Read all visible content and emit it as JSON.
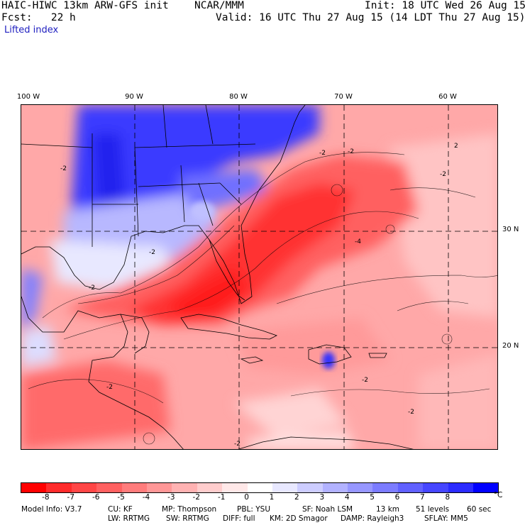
{
  "header": {
    "model_title": "HAIC-HIWC 13km ARW-GFS init",
    "org": "NCAR/MMM",
    "init": "Init: 18 UTC Wed 26 Aug 15",
    "fcst_label": "Fcst:",
    "fcst_value": "22 h",
    "valid": "Valid: 16 UTC Thu 27 Aug 15 (14 LDT Thu 27 Aug 15)",
    "field": "Lifted index"
  },
  "map": {
    "lon_labels": [
      "100 W",
      "90 W",
      "80 W",
      "70 W",
      "60 W"
    ],
    "lat_labels": [
      "30 N",
      "20 N"
    ],
    "contour_labels": [
      "-2",
      "-2",
      "-2",
      "-2",
      "-4",
      "-2",
      "-2",
      "2",
      "-2",
      "-2",
      "-2",
      "-2"
    ]
  },
  "colorbar": {
    "colors": [
      "#ff0000",
      "#ff2b2b",
      "#ff4646",
      "#ff6161",
      "#ff7c7c",
      "#ff9797",
      "#ffb2b2",
      "#ffcdcd",
      "#ffe8e8",
      "#ffffff",
      "#e8e8ff",
      "#cdcdff",
      "#b2b2ff",
      "#9797ff",
      "#7c7cff",
      "#6161ff",
      "#4646ff",
      "#2b2bff",
      "#0000ff"
    ],
    "ticks": [
      "-8",
      "-7",
      "-6",
      "-5",
      "-4",
      "-3",
      "-2",
      "-1",
      "0",
      "1",
      "2",
      "3",
      "4",
      "5",
      "6",
      "7",
      "8"
    ],
    "unit": "°C"
  },
  "model_info": {
    "line1": [
      "Model Info: V3.7",
      "CU: KF",
      "MP: Thompson",
      "PBL: YSU",
      "SF: Noah LSM",
      "13 km",
      "51 levels",
      "60 sec"
    ],
    "line2": [
      "LW: RRTMG",
      "SW: RRTMG",
      "DIFF: full",
      "KM: 2D Smagor",
      "DAMP: Rayleigh3",
      "SFLAY: MM5"
    ]
  }
}
